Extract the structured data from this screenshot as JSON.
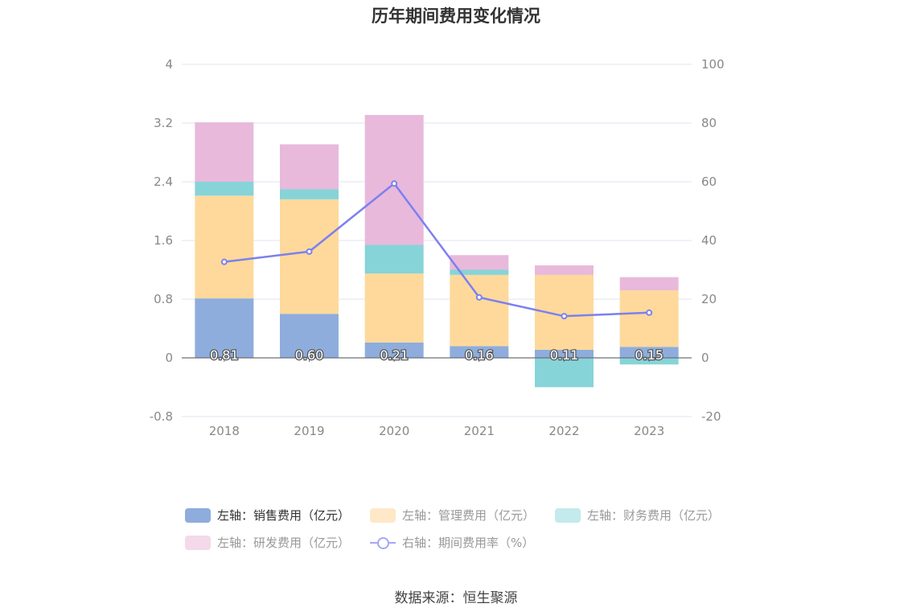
{
  "chart_data": {
    "type": "bar",
    "title": "历年期间费用变化情况",
    "categories": [
      "2018",
      "2019",
      "2020",
      "2021",
      "2022",
      "2023"
    ],
    "series": [
      {
        "name": "左轴：销售费用（亿元）",
        "axis": "left",
        "type": "bar",
        "color": "#8eaddc",
        "values": [
          0.81,
          0.6,
          0.21,
          0.16,
          0.11,
          0.15
        ],
        "labels": [
          "0.81",
          "0.60",
          "0.21",
          "0.16",
          "0.11",
          "0.15"
        ]
      },
      {
        "name": "左轴：管理费用（亿元）",
        "axis": "left",
        "type": "bar",
        "color": "#fed99b",
        "values": [
          1.4,
          1.56,
          0.94,
          0.97,
          1.02,
          0.77
        ]
      },
      {
        "name": "左轴：财务费用（亿元）",
        "axis": "left",
        "type": "bar",
        "color": "#86d4d8",
        "values": [
          0.19,
          0.14,
          0.39,
          0.07,
          -0.4,
          -0.09
        ]
      },
      {
        "name": "左轴：研发费用（亿元）",
        "axis": "left",
        "type": "bar",
        "color": "#e8b9da",
        "values": [
          0.81,
          0.61,
          1.77,
          0.2,
          0.13,
          0.18
        ]
      },
      {
        "name": "右轴：期间费用率（%）",
        "axis": "right",
        "type": "line",
        "color": "#7b80f0",
        "values": [
          32.7,
          36.2,
          59.4,
          20.6,
          14.2,
          15.4
        ]
      }
    ],
    "left_axis": {
      "ylim": [
        -0.8,
        4
      ],
      "ticks": [
        "4",
        "3.2",
        "2.4",
        "1.6",
        "0.8",
        "0",
        "-0.8"
      ]
    },
    "right_axis": {
      "ylim": [
        -20,
        100
      ],
      "ticks": [
        "100",
        "80",
        "60",
        "40",
        "20",
        "0",
        "-20"
      ]
    },
    "grid": true,
    "legend_position": "bottom"
  },
  "legend": {
    "sales": "左轴：销售费用（亿元）",
    "admin": "左轴：管理费用（亿元）",
    "finance": "左轴：财务费用（亿元）",
    "rd": "左轴：研发费用（亿元）",
    "rate": "右轴：期间费用率（%）"
  },
  "colors": {
    "sales": "#8eaddc",
    "admin": "#fee8c8",
    "finance": "#c3eaec",
    "rd": "#f3d9ea",
    "rate": "#a3a8f5"
  },
  "source": "数据来源：恒生聚源"
}
